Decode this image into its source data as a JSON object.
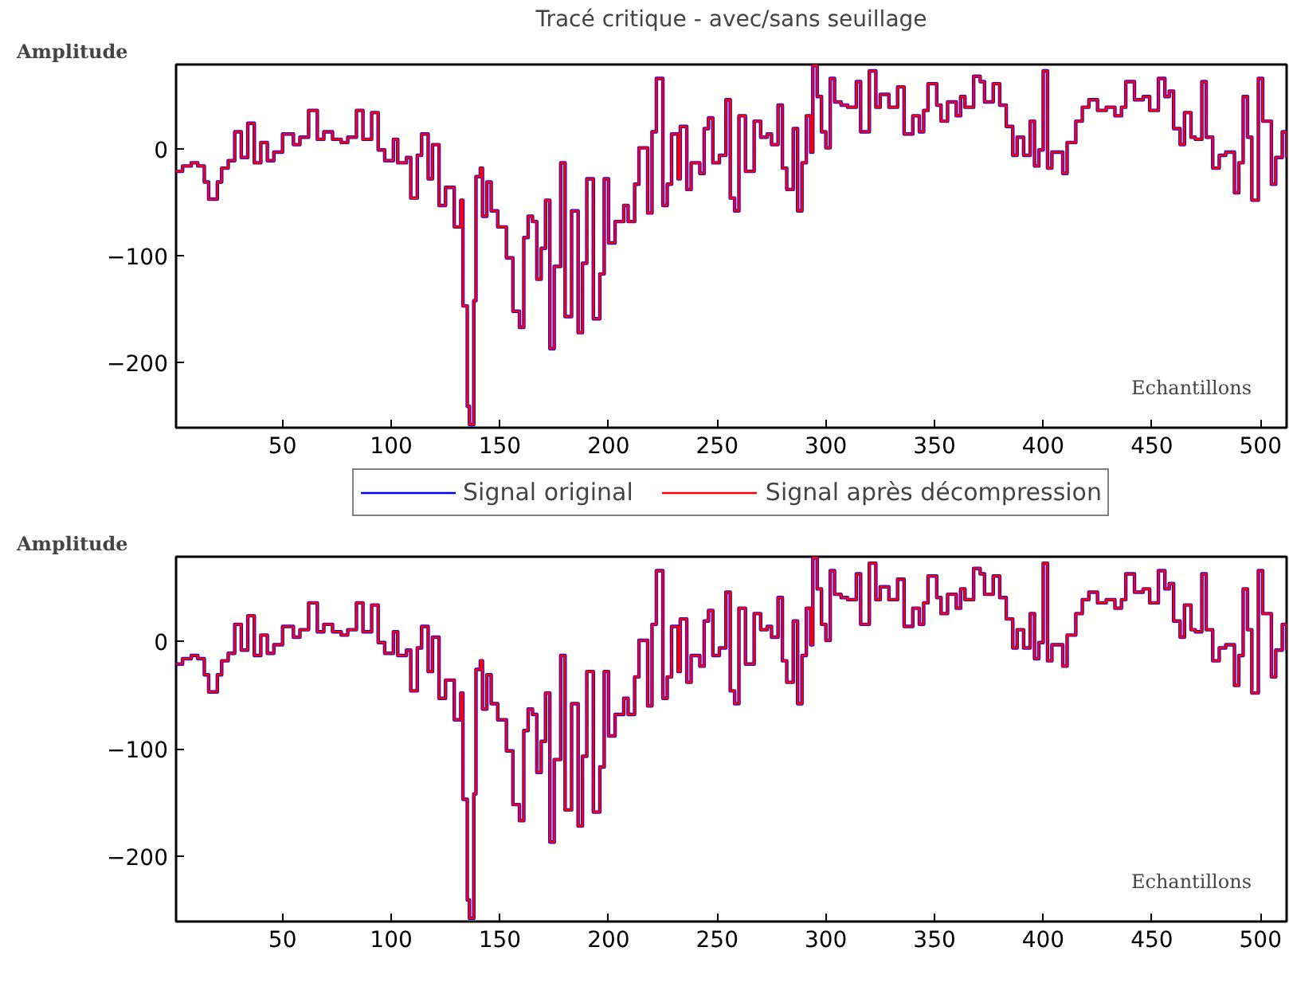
{
  "chart_data": [
    {
      "type": "step",
      "title": "Tracé critique - avec/sans seuillage",
      "ylabel": "Amplitude",
      "xlabel": "Echantillons",
      "x": [
        1,
        4,
        8,
        11,
        14,
        16,
        20,
        22,
        25,
        28,
        31,
        34,
        37,
        40,
        43,
        46,
        50,
        55,
        58,
        62,
        66,
        69,
        73,
        77,
        80,
        84,
        87,
        91,
        94,
        97,
        101,
        103,
        107,
        109,
        112,
        114,
        117,
        119,
        122,
        125,
        129,
        132,
        133,
        135,
        136,
        138,
        139,
        141,
        142,
        144,
        146,
        149,
        153,
        156,
        159,
        161,
        163,
        165,
        167,
        169,
        171,
        173,
        175,
        178,
        180,
        183,
        186,
        188,
        190,
        193,
        196,
        198,
        200,
        203,
        207,
        209,
        212,
        214,
        218,
        220,
        222,
        225,
        227,
        229,
        232,
        233,
        236,
        238,
        242,
        244,
        246,
        248,
        251,
        254,
        256,
        258,
        260,
        263,
        267,
        270,
        273,
        275,
        278,
        280,
        282,
        285,
        287,
        289,
        291,
        293,
        294,
        296,
        298,
        300,
        302,
        304,
        307,
        310,
        314,
        316,
        320,
        323,
        325,
        329,
        333,
        336,
        340,
        343,
        345,
        347,
        351,
        353,
        356,
        360,
        362,
        364,
        368,
        371,
        373,
        377,
        380,
        383,
        386,
        388,
        391,
        394,
        396,
        398,
        400,
        402,
        404,
        407,
        409,
        411,
        415,
        418,
        421,
        425,
        429,
        433,
        436,
        438,
        442,
        446,
        449,
        453,
        456,
        458,
        460,
        463,
        465,
        468,
        470,
        473,
        475,
        478,
        481,
        484,
        488,
        490,
        492,
        494,
        496,
        499,
        501,
        505,
        507,
        510,
        512
      ],
      "series": [
        {
          "name": "Signal original",
          "color": "#0000ff",
          "values": [
            -21,
            -16,
            -13,
            -16,
            -31,
            -47,
            -31,
            -18,
            -11,
            16,
            -8,
            24,
            -13,
            6,
            -11,
            -3,
            14,
            4,
            11,
            36,
            9,
            16,
            9,
            6,
            11,
            36,
            9,
            34,
            -1,
            -11,
            9,
            -13,
            -8,
            -46,
            -6,
            14,
            -28,
            4,
            -53,
            -36,
            -73,
            -48,
            -147,
            -241,
            -258,
            -142,
            -26,
            -18,
            -63,
            -31,
            -58,
            -73,
            -102,
            -152,
            -167,
            -83,
            -63,
            -68,
            -122,
            -93,
            -48,
            -187,
            -110,
            -13,
            -157,
            -58,
            -172,
            -107,
            -28,
            -159,
            -117,
            -28,
            -88,
            -68,
            -53,
            -68,
            -33,
            1,
            -60,
            16,
            66,
            -53,
            -33,
            14,
            -28,
            21,
            -38,
            -13,
            -23,
            19,
            29,
            -13,
            -6,
            46,
            -46,
            -58,
            31,
            -21,
            26,
            11,
            14,
            4,
            41,
            -18,
            -38,
            19,
            -58,
            -13,
            31,
            -3,
            78,
            49,
            16,
            1,
            66,
            44,
            41,
            39,
            63,
            16,
            73,
            39,
            51,
            39,
            58,
            14,
            31,
            16,
            36,
            61,
            41,
            26,
            44,
            31,
            49,
            39,
            68,
            63,
            44,
            61,
            41,
            21,
            -6,
            11,
            -6,
            26,
            -16,
            -1,
            73,
            -18,
            -3,
            -3,
            -23,
            6,
            26,
            39,
            46,
            36,
            39,
            31,
            39,
            63,
            46,
            49,
            36,
            66,
            49,
            54,
            19,
            4,
            34,
            11,
            9,
            63,
            11,
            -18,
            -6,
            -3,
            -41,
            -13,
            49,
            11,
            -48,
            66,
            26,
            -33,
            -8,
            16,
            -8
          ]
        },
        {
          "name": "Signal après décompression",
          "color": "#ff0000",
          "values": [
            -21,
            -16,
            -13,
            -16,
            -31,
            -47,
            -31,
            -18,
            -11,
            16,
            -8,
            24,
            -13,
            6,
            -11,
            -3,
            14,
            4,
            11,
            36,
            9,
            16,
            9,
            6,
            11,
            36,
            9,
            34,
            -1,
            -11,
            9,
            -13,
            -8,
            -46,
            -6,
            14,
            -28,
            4,
            -53,
            -36,
            -73,
            -48,
            -147,
            -241,
            -258,
            -142,
            -26,
            -18,
            -63,
            -31,
            -58,
            -73,
            -102,
            -152,
            -167,
            -83,
            -63,
            -68,
            -122,
            -93,
            -48,
            -187,
            -110,
            -13,
            -157,
            -58,
            -172,
            -107,
            -28,
            -159,
            -117,
            -28,
            -88,
            -68,
            -53,
            -68,
            -33,
            1,
            -60,
            16,
            66,
            -53,
            -33,
            14,
            -28,
            21,
            -38,
            -13,
            -23,
            19,
            29,
            -13,
            -6,
            46,
            -46,
            -58,
            31,
            -21,
            26,
            11,
            14,
            4,
            41,
            -18,
            -38,
            19,
            -58,
            -13,
            31,
            -3,
            78,
            49,
            16,
            1,
            66,
            44,
            41,
            39,
            63,
            16,
            73,
            39,
            51,
            39,
            58,
            14,
            31,
            16,
            36,
            61,
            41,
            26,
            44,
            31,
            49,
            39,
            68,
            63,
            44,
            61,
            41,
            21,
            -6,
            11,
            -6,
            26,
            -16,
            -1,
            73,
            -18,
            -3,
            -3,
            -23,
            6,
            26,
            39,
            46,
            36,
            39,
            31,
            39,
            63,
            46,
            49,
            36,
            66,
            49,
            54,
            19,
            4,
            34,
            11,
            9,
            63,
            11,
            -18,
            -6,
            -3,
            -41,
            -13,
            49,
            11,
            -48,
            66,
            26,
            -33,
            -8,
            16,
            -8
          ]
        }
      ],
      "xlim": [
        1,
        512
      ],
      "ylim": [
        -261,
        79
      ],
      "xticks": [
        50,
        100,
        150,
        200,
        250,
        300,
        350,
        400,
        450,
        500
      ],
      "yticks": [
        -200,
        -100,
        0
      ],
      "grid": false,
      "legend": "bottom",
      "marker": "none",
      "line_style": "solid"
    },
    {
      "type": "step",
      "ylabel": "Amplitude",
      "xlabel": "Echantillons",
      "x": [
        1,
        4,
        8,
        11,
        14,
        16,
        20,
        22,
        25,
        28,
        31,
        34,
        37,
        40,
        43,
        46,
        50,
        55,
        58,
        62,
        66,
        69,
        73,
        77,
        80,
        84,
        87,
        91,
        94,
        97,
        101,
        103,
        107,
        109,
        112,
        114,
        117,
        119,
        122,
        125,
        129,
        132,
        133,
        135,
        136,
        138,
        139,
        141,
        142,
        144,
        146,
        149,
        153,
        156,
        159,
        161,
        163,
        165,
        167,
        169,
        171,
        173,
        175,
        178,
        180,
        183,
        186,
        188,
        190,
        193,
        196,
        198,
        200,
        203,
        207,
        209,
        212,
        214,
        218,
        220,
        222,
        225,
        227,
        229,
        232,
        233,
        236,
        238,
        242,
        244,
        246,
        248,
        251,
        254,
        256,
        258,
        260,
        263,
        267,
        270,
        273,
        275,
        278,
        280,
        282,
        285,
        287,
        289,
        291,
        293,
        294,
        296,
        298,
        300,
        302,
        304,
        307,
        310,
        314,
        316,
        320,
        323,
        325,
        329,
        333,
        336,
        340,
        343,
        345,
        347,
        351,
        353,
        356,
        360,
        362,
        364,
        368,
        371,
        373,
        377,
        380,
        383,
        386,
        388,
        391,
        394,
        396,
        398,
        400,
        402,
        404,
        407,
        409,
        411,
        415,
        418,
        421,
        425,
        429,
        433,
        436,
        438,
        442,
        446,
        449,
        453,
        456,
        458,
        460,
        463,
        465,
        468,
        470,
        473,
        475,
        478,
        481,
        484,
        488,
        490,
        492,
        494,
        496,
        499,
        501,
        505,
        507,
        510,
        512
      ],
      "series": [
        {
          "color": "#0000ff",
          "values": [
            -21,
            -16,
            -13,
            -16,
            -31,
            -47,
            -31,
            -18,
            -11,
            16,
            -8,
            24,
            -13,
            6,
            -11,
            -3,
            14,
            4,
            11,
            36,
            9,
            16,
            9,
            6,
            11,
            36,
            9,
            34,
            -1,
            -11,
            9,
            -13,
            -8,
            -46,
            -6,
            14,
            -28,
            4,
            -53,
            -36,
            -73,
            -48,
            -147,
            -241,
            -258,
            -142,
            -26,
            -18,
            -63,
            -31,
            -58,
            -73,
            -102,
            -152,
            -167,
            -83,
            -63,
            -68,
            -122,
            -93,
            -48,
            -187,
            -110,
            -13,
            -157,
            -58,
            -172,
            -107,
            -28,
            -159,
            -117,
            -28,
            -88,
            -68,
            -53,
            -68,
            -33,
            1,
            -60,
            16,
            66,
            -53,
            -33,
            14,
            -28,
            21,
            -38,
            -13,
            -23,
            19,
            29,
            -13,
            -6,
            46,
            -46,
            -58,
            31,
            -21,
            26,
            11,
            14,
            4,
            41,
            -18,
            -38,
            19,
            -58,
            -13,
            31,
            -3,
            78,
            49,
            16,
            1,
            66,
            44,
            41,
            39,
            63,
            16,
            73,
            39,
            51,
            39,
            58,
            14,
            31,
            16,
            36,
            61,
            41,
            26,
            44,
            31,
            49,
            39,
            68,
            63,
            44,
            61,
            41,
            21,
            -6,
            11,
            -6,
            26,
            -16,
            -1,
            73,
            -18,
            -3,
            -3,
            -23,
            6,
            26,
            39,
            46,
            36,
            39,
            31,
            39,
            63,
            46,
            49,
            36,
            66,
            49,
            54,
            19,
            4,
            34,
            11,
            9,
            63,
            11,
            -18,
            -6,
            -3,
            -41,
            -13,
            49,
            11,
            -48,
            66,
            26,
            -33,
            -8,
            16,
            -8
          ]
        },
        {
          "color": "#ff0000",
          "values": [
            -21,
            -16,
            -13,
            -16,
            -31,
            -47,
            -31,
            -18,
            -11,
            16,
            -8,
            24,
            -13,
            6,
            -11,
            -3,
            14,
            4,
            11,
            36,
            9,
            16,
            9,
            6,
            11,
            36,
            9,
            34,
            -1,
            -11,
            9,
            -13,
            -8,
            -46,
            -6,
            14,
            -28,
            4,
            -53,
            -36,
            -73,
            -48,
            -147,
            -241,
            -258,
            -142,
            -26,
            -18,
            -63,
            -31,
            -58,
            -73,
            -102,
            -152,
            -167,
            -83,
            -63,
            -68,
            -122,
            -93,
            -48,
            -187,
            -110,
            -13,
            -157,
            -58,
            -172,
            -107,
            -28,
            -159,
            -117,
            -28,
            -88,
            -68,
            -53,
            -68,
            -33,
            1,
            -60,
            16,
            66,
            -53,
            -33,
            14,
            -28,
            21,
            -38,
            -13,
            -23,
            19,
            29,
            -13,
            -6,
            46,
            -46,
            -58,
            31,
            -21,
            26,
            11,
            14,
            4,
            41,
            -18,
            -38,
            19,
            -58,
            -13,
            31,
            -3,
            78,
            49,
            16,
            1,
            66,
            44,
            41,
            39,
            63,
            16,
            73,
            39,
            51,
            39,
            58,
            14,
            31,
            16,
            36,
            61,
            41,
            26,
            44,
            31,
            49,
            39,
            68,
            63,
            44,
            61,
            41,
            21,
            -6,
            11,
            -6,
            26,
            -16,
            -1,
            73,
            -18,
            -3,
            -3,
            -23,
            6,
            26,
            39,
            46,
            36,
            39,
            31,
            39,
            63,
            46,
            49,
            36,
            66,
            49,
            54,
            19,
            4,
            34,
            11,
            9,
            63,
            11,
            -18,
            -6,
            -3,
            -41,
            -13,
            49,
            11,
            -48,
            66,
            26,
            -33,
            -8,
            16,
            -8
          ]
        }
      ],
      "xlim": [
        1,
        512
      ],
      "ylim": [
        -261,
        79
      ],
      "xticks": [
        50,
        100,
        150,
        200,
        250,
        300,
        350,
        400,
        450,
        500
      ],
      "yticks": [
        -200,
        -100,
        0
      ],
      "grid": false,
      "legend": false,
      "marker": "none",
      "line_style": "solid"
    }
  ]
}
